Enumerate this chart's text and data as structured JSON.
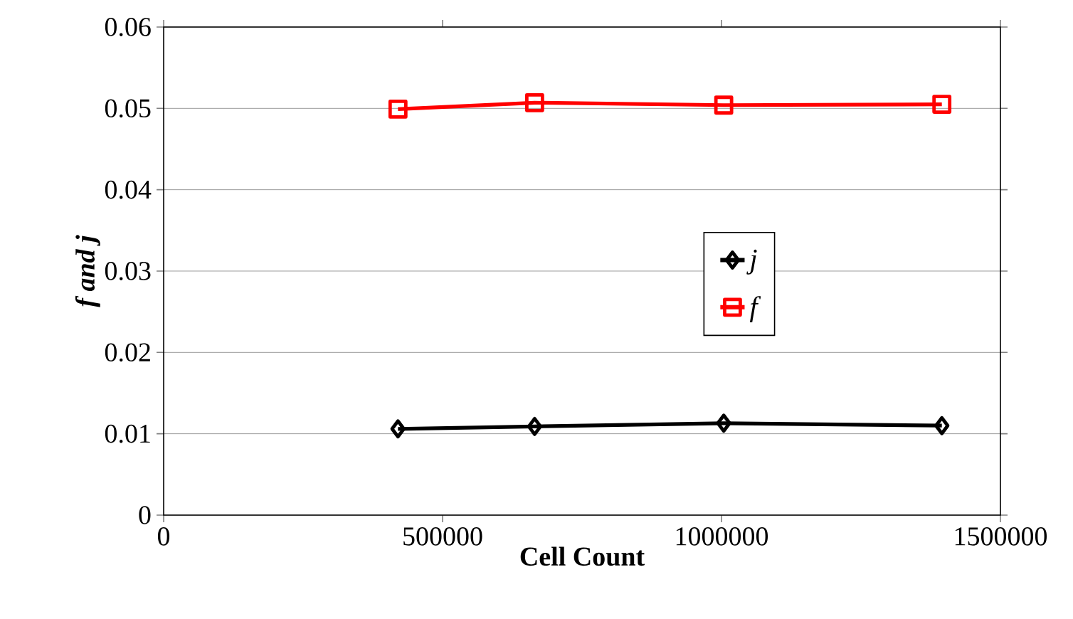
{
  "chart_data": {
    "type": "line",
    "xlabel": "Cell Count",
    "ylabel": "f and j",
    "x": [
      420000,
      665000,
      1004000,
      1395000
    ],
    "series": [
      {
        "name": "j",
        "color": "#000000",
        "marker": "diamond",
        "values": [
          0.0106,
          0.0109,
          0.0113,
          0.011
        ]
      },
      {
        "name": "f",
        "color": "#ff0000",
        "marker": "square",
        "values": [
          0.0499,
          0.0507,
          0.0504,
          0.0505
        ]
      }
    ],
    "xlim": [
      0,
      1500000
    ],
    "xticks": [
      0,
      500000,
      1000000,
      1500000
    ],
    "ylim": [
      0,
      0.06
    ],
    "yticks": [
      0,
      0.01,
      0.02,
      0.03,
      0.04,
      0.05,
      0.06
    ],
    "grid": "y",
    "legend": "right",
    "line_style": "solid"
  }
}
